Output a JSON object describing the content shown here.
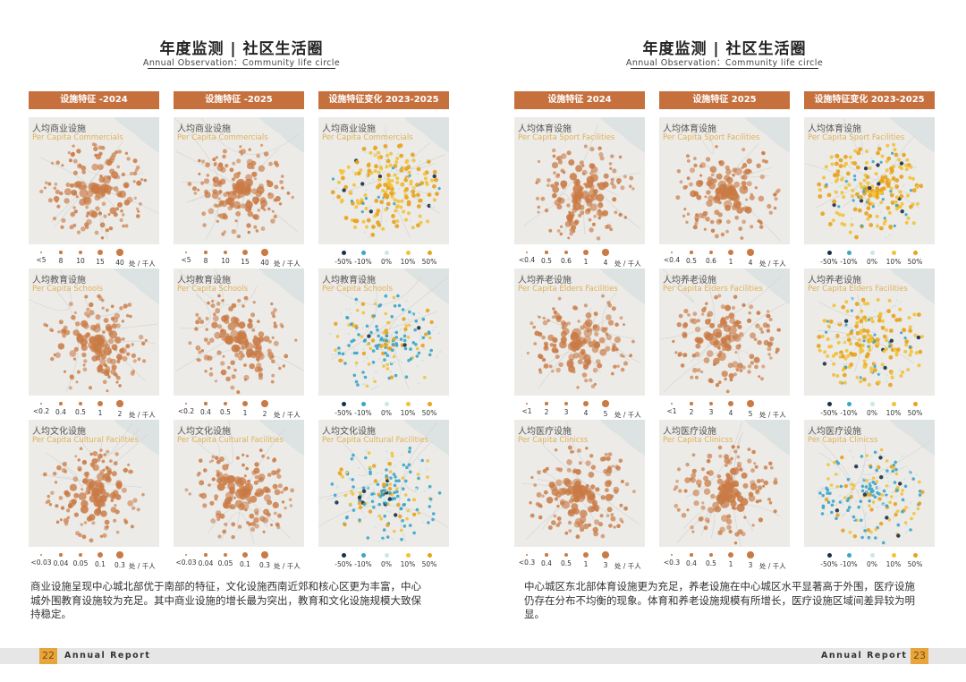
{
  "left": {
    "title": "年度监测 | 社区生活圈",
    "subtitle": "Annual Observation：Community life circle",
    "headers": [
      "设施特征 -2024",
      "设施特征 -2025",
      "设施特征变化 2023-2025"
    ],
    "rows": [
      {
        "cn": "人均商业设施",
        "en": "Per Capita Commercials",
        "level_legend": [
          "<5",
          "8",
          "10",
          "15",
          "40"
        ],
        "unit": "处 / 千人",
        "change_legend": [
          "-50%",
          "-10%",
          "0%",
          "10%",
          "50%"
        ],
        "change_palette": "orange"
      },
      {
        "cn": "人均教育设施",
        "en": "Per Capita Schools",
        "level_legend": [
          "<0.2",
          "0.4",
          "0.5",
          "1",
          "2"
        ],
        "unit": "处 / 千人",
        "change_legend": [
          "-50%",
          "-10%",
          "0%",
          "10%",
          "50%"
        ],
        "change_palette": "blue"
      },
      {
        "cn": "人均文化设施",
        "en": "Per Capita Cultural Facilities",
        "level_legend": [
          "<0.03",
          "0.04",
          "0.05",
          "0.1",
          "0.3"
        ],
        "unit": "处 / 千人",
        "change_legend": [
          "-50%",
          "-10%",
          "0%",
          "10%",
          "50%"
        ],
        "change_palette": "blue"
      }
    ],
    "caption": "商业设施呈现中心城北部优于南部的特征，文化设施西南近郊和核心区更为丰富，中心城外围教育设施较为充足。其中商业设施的增长最为突出，教育和文化设施规模大致保持稳定。",
    "page_number": "22",
    "footer": "Annual Report"
  },
  "right": {
    "title": "年度监测 | 社区生活圈",
    "subtitle": "Annual Observation：Community life circle",
    "headers": [
      "设施特征 2024",
      "设施特征  2025",
      "设施特征变化 2023-2025"
    ],
    "rows": [
      {
        "cn": "人均体育设施",
        "en": "Per Capita Sport Facilities",
        "level_legend": [
          "<0.4",
          "0.5",
          "0.6",
          "1",
          "4"
        ],
        "unit": "处 / 千人",
        "change_legend": [
          "-50%",
          "-10%",
          "0%",
          "10%",
          "50%"
        ],
        "change_palette": "orange"
      },
      {
        "cn": "人均养老设施",
        "en": "Per Capita Elders Facilities",
        "level_legend": [
          "<1",
          "2",
          "3",
          "4",
          "5"
        ],
        "unit": "处 / 千人",
        "change_legend": [
          "-50%",
          "-10%",
          "0%",
          "10%",
          "50%"
        ],
        "change_palette": "orange"
      },
      {
        "cn": "人均医疗设施",
        "en": "Per Capita Clinicss",
        "level_legend": [
          "<0.3",
          "0.4",
          "0.5",
          "1",
          "3"
        ],
        "unit": "处 / 千人",
        "change_legend": [
          "-50%",
          "-10%",
          "0%",
          "10%",
          "50%"
        ],
        "change_palette": "blue"
      }
    ],
    "caption": "中心城区东北部体育设施更为充足，养老设施在中心城区水平显著高于外围，医疗设施仍存在分布不均衡的现象。体育和养老设施规模有所增长，医疗设施区域间差异较为明显。",
    "page_number": "23",
    "footer": "Annual Report"
  },
  "colors": {
    "header_bg": "#c6703e",
    "level_dot": "#c97a45",
    "change_dark": "#1c2f45",
    "change_blue": "#3aa6c9",
    "change_light": "#cfe3ea",
    "change_yellow": "#f2c23a",
    "change_orange": "#e8a21c"
  }
}
